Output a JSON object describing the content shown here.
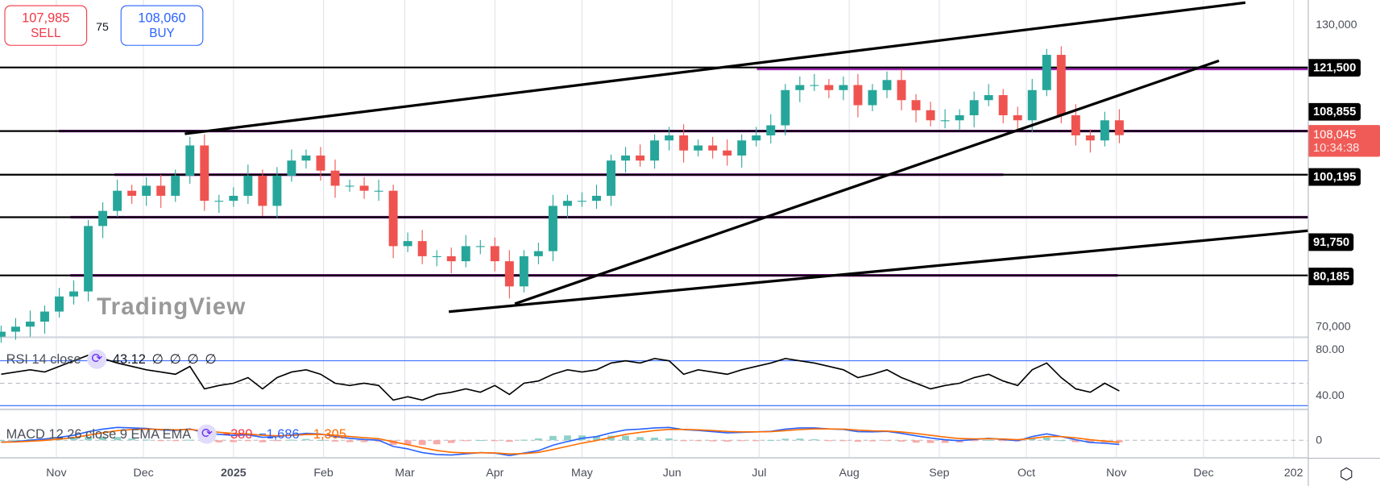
{
  "trade": {
    "sell_price": "107,985",
    "sell_label": "SELL",
    "spread": "75",
    "buy_price": "108,060",
    "buy_label": "BUY"
  },
  "price_axis": {
    "ticks": [
      "130,000",
      "70,000"
    ],
    "levels": [
      {
        "label": "121,500",
        "value": 121500
      },
      {
        "label": "108,855",
        "value": 108855
      },
      {
        "label": "100,195",
        "value": 100195
      },
      {
        "label": "91,750",
        "value": 91750
      },
      {
        "label": "80,185",
        "value": 80185
      }
    ],
    "current_price": "108,045",
    "countdown": "10:34:38"
  },
  "rsi": {
    "label": "RSI 14 close",
    "value": "43.12",
    "extra": [
      "∅",
      "∅",
      "∅",
      "∅"
    ],
    "ticks": [
      "80.00",
      "40.00"
    ]
  },
  "macd": {
    "label": "MACD 12 26 close 9 EMA EMA",
    "hist": "−380",
    "macd": "−1,686",
    "signal": "−1,305",
    "tick": "0"
  },
  "time_axis": [
    "Nov",
    "Dec",
    "2025",
    "Feb",
    "Mar",
    "Apr",
    "May",
    "Jun",
    "Jul",
    "Aug",
    "Sep",
    "Oct",
    "Nov",
    "Dec",
    "202"
  ],
  "watermark": "TradingView",
  "colors": {
    "up": "#26a69a",
    "down": "#ef5350",
    "sell": "#f23645",
    "buy": "#2962ff",
    "level_purple": "#9c27b0",
    "macd": "#2962ff",
    "signal": "#ff6d00"
  },
  "chart_data": {
    "type": "candlestick",
    "dates": [
      "2024-10-13",
      "2024-10-18",
      "2024-10-23",
      "2024-10-28",
      "2024-11-02",
      "2024-11-07",
      "2024-11-12",
      "2024-11-17",
      "2024-11-22",
      "2024-11-27",
      "2024-12-02",
      "2024-12-07",
      "2024-12-12",
      "2024-12-17",
      "2024-12-22",
      "2024-12-27",
      "2025-01-01",
      "2025-01-06",
      "2025-01-11",
      "2025-01-16",
      "2025-01-21",
      "2025-01-26",
      "2025-01-31",
      "2025-02-05",
      "2025-02-10",
      "2025-02-15",
      "2025-02-20",
      "2025-02-25",
      "2025-03-02",
      "2025-03-07",
      "2025-03-12",
      "2025-03-17",
      "2025-03-22",
      "2025-03-27",
      "2025-04-01",
      "2025-04-06",
      "2025-04-11",
      "2025-04-16",
      "2025-04-21",
      "2025-04-26",
      "2025-05-01",
      "2025-05-06",
      "2025-05-11",
      "2025-05-16",
      "2025-05-21",
      "2025-05-26",
      "2025-05-31",
      "2025-06-05",
      "2025-06-10",
      "2025-06-15",
      "2025-06-20",
      "2025-06-25",
      "2025-06-30",
      "2025-07-05",
      "2025-07-10",
      "2025-07-15",
      "2025-07-20",
      "2025-07-25",
      "2025-07-30",
      "2025-08-04",
      "2025-08-09",
      "2025-08-14",
      "2025-08-19",
      "2025-08-24",
      "2025-08-29",
      "2025-09-03",
      "2025-09-08",
      "2025-09-13",
      "2025-09-18",
      "2025-09-23",
      "2025-09-28",
      "2025-10-03",
      "2025-10-08",
      "2025-10-13",
      "2025-10-18",
      "2025-10-23",
      "2025-10-28",
      "2025-11-02"
    ],
    "close": [
      69000,
      70000,
      71000,
      73000,
      76000,
      77000,
      90000,
      93000,
      97000,
      96000,
      98000,
      96000,
      100000,
      106000,
      95000,
      95000,
      96000,
      100000,
      94000,
      100000,
      103000,
      104000,
      101000,
      98000,
      98000,
      97000,
      97000,
      86000,
      87000,
      84000,
      84000,
      83000,
      86000,
      86000,
      83000,
      78000,
      84000,
      85000,
      94000,
      95000,
      95000,
      96000,
      103000,
      104000,
      103000,
      107000,
      108000,
      105000,
      106000,
      105000,
      104000,
      107000,
      108000,
      110000,
      117000,
      118000,
      118000,
      117000,
      118000,
      114000,
      117000,
      119000,
      115000,
      113000,
      111000,
      111000,
      112000,
      115000,
      116000,
      112000,
      111000,
      117000,
      124000,
      112000,
      108000,
      107000,
      111000,
      108045
    ],
    "rsi": [
      58,
      60,
      62,
      60,
      65,
      70,
      75,
      72,
      68,
      65,
      62,
      60,
      58,
      65,
      45,
      48,
      50,
      55,
      45,
      55,
      60,
      62,
      58,
      50,
      48,
      50,
      48,
      35,
      38,
      35,
      40,
      42,
      45,
      42,
      48,
      40,
      50,
      52,
      58,
      62,
      60,
      62,
      68,
      70,
      68,
      72,
      70,
      58,
      62,
      60,
      58,
      62,
      65,
      68,
      72,
      70,
      68,
      65,
      62,
      55,
      58,
      62,
      55,
      50,
      45,
      48,
      50,
      55,
      58,
      52,
      48,
      62,
      68,
      55,
      45,
      42,
      50,
      43.12
    ],
    "macd": [
      -800,
      -500,
      0,
      500,
      1200,
      2000,
      3500,
      4500,
      5200,
      5000,
      4800,
      4200,
      4000,
      4600,
      3000,
      2400,
      2000,
      2200,
      1200,
      1500,
      2200,
      2800,
      2500,
      1500,
      800,
      300,
      0,
      -2500,
      -3500,
      -5000,
      -5800,
      -6000,
      -5500,
      -5000,
      -5200,
      -6200,
      -5200,
      -4200,
      -2000,
      -500,
      800,
      1500,
      3000,
      4200,
      4500,
      5000,
      5200,
      4300,
      4000,
      3500,
      3000,
      3200,
      3400,
      3600,
      4500,
      5000,
      5000,
      4600,
      4400,
      3500,
      3400,
      3600,
      2800,
      1800,
      900,
      200,
      -200,
      300,
      800,
      300,
      -200,
      1500,
      2600,
      1500,
      200,
      -900,
      -1200,
      -1686
    ],
    "ylim": [
      70000,
      130000
    ],
    "levels": [
      121500,
      108855,
      100195,
      91750,
      80185
    ]
  }
}
